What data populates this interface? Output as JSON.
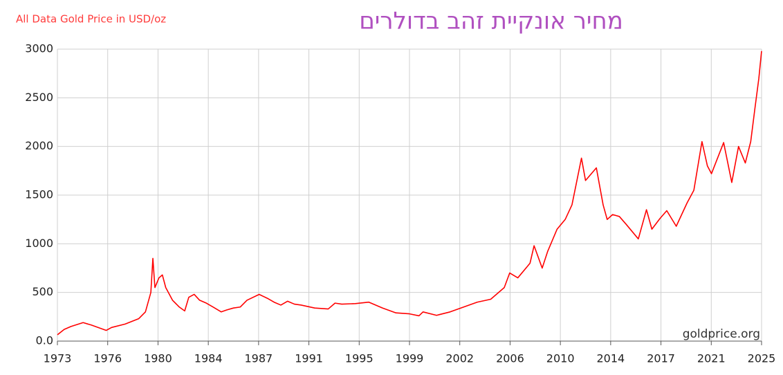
{
  "chart_data": {
    "type": "line",
    "title": "All Data Gold Price in USD/oz",
    "subtitle": "מחיר אונקיית זהב בדולרים",
    "watermark": "goldprice.org",
    "grid": true,
    "xlim": [
      1973,
      2025
    ],
    "xticks": [
      1973,
      {
        "value": 1976.714,
        "label": "1976"
      },
      {
        "value": 1980.429,
        "label": "1980"
      },
      {
        "value": 1984.143,
        "label": "1984"
      },
      {
        "value": 1987.857,
        "label": "1987"
      },
      {
        "value": 1991.571,
        "label": "1991"
      },
      {
        "value": 1995.286,
        "label": "1995"
      },
      1999,
      {
        "value": 2002.714,
        "label": "2002"
      },
      {
        "value": 2006.429,
        "label": "2006"
      },
      {
        "value": 2010.143,
        "label": "2010"
      },
      {
        "value": 2013.857,
        "label": "2014"
      },
      {
        "value": 2017.571,
        "label": "2017"
      },
      {
        "value": 2021.286,
        "label": "2021"
      },
      2025
    ],
    "ylim": [
      0,
      3000
    ],
    "yticks": [
      {
        "value": 0,
        "label": "0.0"
      },
      500,
      1000,
      1500,
      2000,
      2500,
      3000
    ],
    "series": [
      {
        "name": "Gold Price",
        "color": "#ff0000",
        "x": [
          1973,
          1973.5,
          1974,
          1974.9,
          1975.5,
          1976.6,
          1977,
          1978,
          1979,
          1979.5,
          1979.9,
          1980.05,
          1980.2,
          1980.5,
          1980.75,
          1981,
          1981.5,
          1982,
          1982.4,
          1982.7,
          1983.1,
          1983.5,
          1984,
          1984.5,
          1985.1,
          1985.5,
          1986,
          1986.5,
          1987,
          1987.9,
          1988.5,
          1989,
          1989.5,
          1990,
          1990.5,
          1991,
          1992,
          1993,
          1993.5,
          1994,
          1995,
          1996,
          1997,
          1998,
          1999,
          1999.7,
          2000,
          2001,
          2002,
          2003,
          2004,
          2005,
          2006,
          2006.4,
          2007,
          2007.9,
          2008.2,
          2008.8,
          2009.2,
          2009.9,
          2010.5,
          2011,
          2011.7,
          2012,
          2012.8,
          2013.3,
          2013.6,
          2014,
          2014.5,
          2015,
          2015.9,
          2016.5,
          2016.9,
          2017.5,
          2018,
          2018.7,
          2019.5,
          2020,
          2020.6,
          2021,
          2021.3,
          2022.2,
          2022.8,
          2023.3,
          2023.8,
          2024.2,
          2024.5,
          2024.8,
          2025
        ],
        "values": [
          65,
          120,
          150,
          190,
          165,
          110,
          140,
          175,
          230,
          300,
          500,
          850,
          550,
          650,
          680,
          550,
          420,
          350,
          310,
          450,
          480,
          420,
          390,
          350,
          300,
          320,
          340,
          350,
          420,
          480,
          440,
          400,
          370,
          410,
          380,
          370,
          340,
          330,
          390,
          380,
          385,
          400,
          340,
          290,
          280,
          260,
          300,
          265,
          300,
          350,
          400,
          430,
          550,
          700,
          650,
          800,
          980,
          750,
          920,
          1150,
          1250,
          1400,
          1880,
          1650,
          1780,
          1400,
          1250,
          1300,
          1280,
          1200,
          1050,
          1350,
          1150,
          1260,
          1340,
          1180,
          1420,
          1550,
          2050,
          1800,
          1720,
          2040,
          1630,
          2000,
          1830,
          2050,
          2380,
          2700,
          2980
        ]
      }
    ]
  }
}
